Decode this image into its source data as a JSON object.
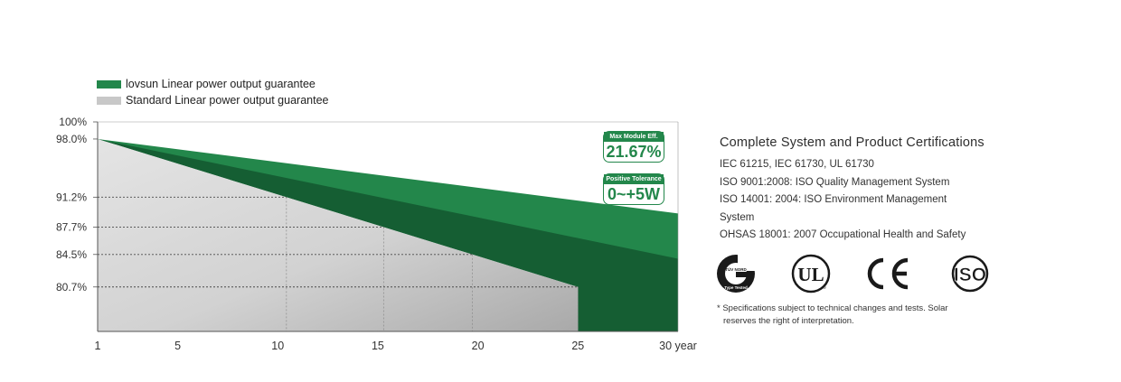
{
  "chart_data": {
    "type": "area",
    "x_ticks": [
      "1",
      "5",
      "10",
      "15",
      "20",
      "25",
      "30 year"
    ],
    "y_ticks": [
      "100%",
      "98.0%",
      "91.2%",
      "87.7%",
      "84.5%",
      "80.7%"
    ],
    "series": [
      {
        "name": "lovsun Linear power output guarantee",
        "color": "#23874b",
        "x": [
          1,
          30
        ],
        "y": [
          98.0,
          89.3
        ]
      },
      {
        "name": "Standard Linear power output guarantee",
        "color": "#c8c8c8",
        "x": [
          1,
          25
        ],
        "y": [
          98.0,
          80.7
        ]
      }
    ],
    "reference_lines": [
      91.2,
      87.7,
      84.5,
      80.7
    ],
    "xlim": [
      1,
      30
    ],
    "ylim": [
      75.5,
      100
    ],
    "grid": "dotted"
  },
  "legend": {
    "items": [
      {
        "label": "lovsun Linear power output guarantee",
        "color": "#23874b"
      },
      {
        "label": "Standard Linear power output guarantee",
        "color": "#c8c8c8"
      }
    ]
  },
  "badges": {
    "efficiency": {
      "label": "Max Module Eff.",
      "value": "21.67%"
    },
    "tolerance": {
      "label": "Positive Tolerance",
      "value": "0~+5W"
    }
  },
  "certifications": {
    "title": "Complete System and Product Certifications",
    "lines": [
      "IEC 61215, IEC 61730, UL 61730",
      "ISO 9001:2008: ISO Quality Management System",
      "ISO 14001: 2004: ISO Environment Management",
      "System",
      "OHSAS 18001: 2007 Occupational Health and Safety"
    ],
    "logos": [
      "tuv-rheinland-logo",
      "ul-logo",
      "ce-logo",
      "iso-logo"
    ],
    "logo_text": {
      "tuv": "TÜV NORD",
      "tuv_sub": "Type Tested",
      "ul": "UL",
      "iso": "ISO"
    }
  },
  "footnote": {
    "line1": "* Specifications subject to technical changes and tests.  Solar",
    "line2": "reserves the right of interpretation."
  }
}
